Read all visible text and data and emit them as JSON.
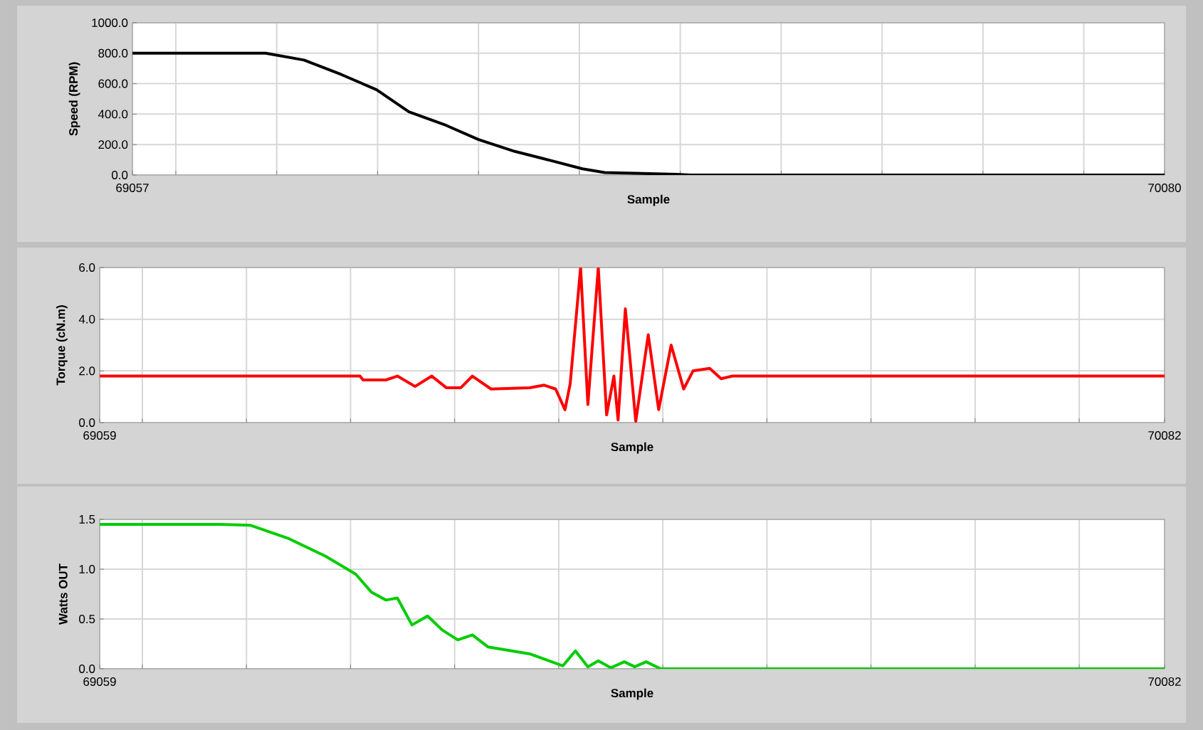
{
  "chart_data": [
    {
      "type": "line",
      "xlabel": "Sample",
      "ylabel": "Speed (RPM)",
      "xlim": [
        69057,
        70080
      ],
      "ylim": [
        0,
        1000
      ],
      "xticks": [
        69057,
        {
          "value": 69100,
          "label": null
        },
        {
          "value": 69200,
          "label": null
        },
        {
          "value": 69300,
          "label": null
        },
        {
          "value": 69400,
          "label": null
        },
        {
          "value": 69500,
          "label": null
        },
        {
          "value": 69600,
          "label": null
        },
        {
          "value": 69700,
          "label": null
        },
        {
          "value": 69800,
          "label": null
        },
        {
          "value": 69900,
          "label": null
        },
        {
          "value": 70000,
          "label": null
        },
        70080
      ],
      "yticks": [
        {
          "value": 0,
          "label": "0.0"
        },
        {
          "value": 200,
          "label": "200.0"
        },
        {
          "value": 400,
          "label": "400.0"
        },
        {
          "value": 600,
          "label": "600.0"
        },
        {
          "value": 800,
          "label": "800.0"
        },
        {
          "value": 1000,
          "label": "1000.0"
        }
      ],
      "grid": true,
      "series": [
        {
          "color": "#000000",
          "x": [
            69057,
            69189,
            69227,
            69264,
            69299,
            69331,
            69368,
            69400,
            69436,
            69473,
            69503,
            69525,
            69562,
            69596,
            69610,
            70080
          ],
          "values": [
            800,
            800,
            755,
            660,
            560,
            415,
            326,
            233,
            155,
            93,
            41,
            16,
            10,
            5,
            0,
            0
          ]
        }
      ]
    },
    {
      "type": "line",
      "xlabel": "Sample",
      "ylabel": "Torque (cN.m)",
      "xlim": [
        69059,
        70082
      ],
      "ylim": [
        0,
        6
      ],
      "xticks": [
        69059,
        {
          "value": 69100,
          "label": null
        },
        {
          "value": 69200,
          "label": null
        },
        {
          "value": 69300,
          "label": null
        },
        {
          "value": 69400,
          "label": null
        },
        {
          "value": 69500,
          "label": null
        },
        {
          "value": 69600,
          "label": null
        },
        {
          "value": 69700,
          "label": null
        },
        {
          "value": 69800,
          "label": null
        },
        {
          "value": 69900,
          "label": null
        },
        {
          "value": 70000,
          "label": null
        },
        70082
      ],
      "yticks": [
        {
          "value": 0,
          "label": "0.0"
        },
        {
          "value": 2,
          "label": "2.0"
        },
        {
          "value": 4,
          "label": "4.0"
        },
        {
          "value": 6,
          "label": "6.0"
        }
      ],
      "grid": true,
      "series": [
        {
          "color": "#ff0000",
          "x": [
            69059,
            69309,
            69312,
            69334,
            69345,
            69362,
            69378,
            69392,
            69406,
            69417,
            69435,
            69472,
            69486,
            69497,
            69506,
            69511,
            69521,
            69528,
            69538,
            69546,
            69553,
            69557,
            69564,
            69574,
            69586,
            69596,
            69608,
            69620,
            69629,
            69645,
            69656,
            69667,
            70082
          ],
          "values": [
            1.8,
            1.8,
            1.65,
            1.65,
            1.8,
            1.4,
            1.8,
            1.35,
            1.35,
            1.8,
            1.3,
            1.35,
            1.45,
            1.3,
            0.5,
            1.5,
            6.0,
            0.7,
            6.0,
            0.3,
            1.8,
            0.1,
            4.4,
            0.05,
            3.4,
            0.5,
            3.0,
            1.3,
            2.0,
            2.1,
            1.7,
            1.8,
            1.8
          ]
        }
      ]
    },
    {
      "type": "line",
      "xlabel": "Sample",
      "ylabel": "Watts OUT",
      "xlim": [
        69059,
        70082
      ],
      "ylim": [
        0,
        1.5
      ],
      "xticks": [
        69059,
        {
          "value": 69100,
          "label": null
        },
        {
          "value": 69200,
          "label": null
        },
        {
          "value": 69300,
          "label": null
        },
        {
          "value": 69400,
          "label": null
        },
        {
          "value": 69500,
          "label": null
        },
        {
          "value": 69600,
          "label": null
        },
        {
          "value": 69700,
          "label": null
        },
        {
          "value": 69800,
          "label": null
        },
        {
          "value": 69900,
          "label": null
        },
        {
          "value": 70000,
          "label": null
        },
        70082
      ],
      "yticks": [
        {
          "value": 0,
          "label": "0.0"
        },
        {
          "value": 0.5,
          "label": "0.5"
        },
        {
          "value": 1.0,
          "label": "1.0"
        },
        {
          "value": 1.5,
          "label": "1.5"
        }
      ],
      "grid": true,
      "series": [
        {
          "color": "#00cc00",
          "x": [
            69059,
            69175,
            69204,
            69240,
            69276,
            69305,
            69320,
            69334,
            69345,
            69359,
            69374,
            69388,
            69403,
            69417,
            69432,
            69472,
            69504,
            69516,
            69528,
            69538,
            69550,
            69563,
            69573,
            69584,
            69598,
            70082
          ],
          "values": [
            1.45,
            1.45,
            1.44,
            1.31,
            1.13,
            0.95,
            0.77,
            0.69,
            0.71,
            0.44,
            0.53,
            0.39,
            0.29,
            0.34,
            0.22,
            0.15,
            0.03,
            0.18,
            0.02,
            0.08,
            0.01,
            0.07,
            0.02,
            0.07,
            0.0,
            0.0
          ]
        }
      ]
    }
  ]
}
